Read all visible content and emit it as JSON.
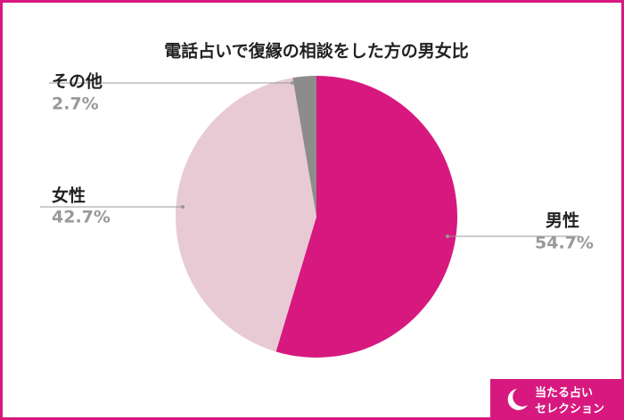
{
  "chart_data": {
    "type": "pie",
    "title": "電話占いで復縁の相談をした方の男女比",
    "categories": [
      "男性",
      "女性",
      "その他"
    ],
    "values": [
      54.7,
      42.7,
      2.7
    ],
    "value_labels": [
      "54.7%",
      "42.7%",
      "2.7%"
    ],
    "colors": [
      "#d7197f",
      "#e8cad5",
      "#8c8c8c"
    ]
  },
  "logo": {
    "lines": [
      "当たる占い",
      "セレクション"
    ]
  }
}
